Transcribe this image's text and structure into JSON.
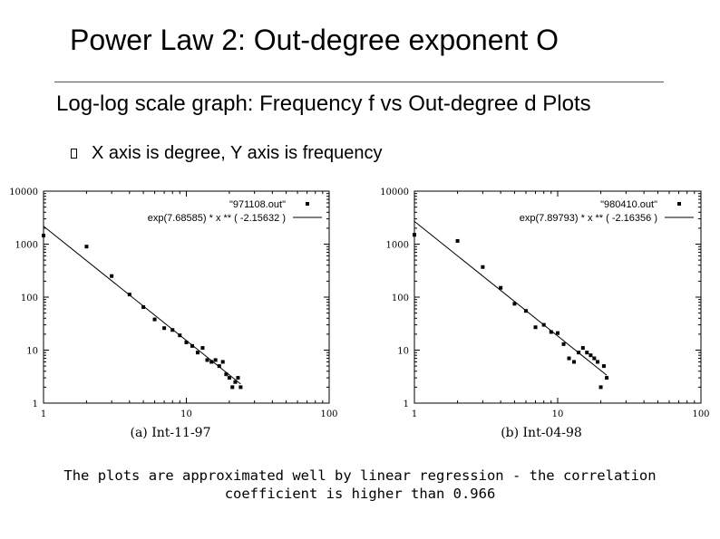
{
  "slide": {
    "title": "Power Law 2: Out-degree exponent O",
    "bullet_main": "Log-log scale graph: Frequency f vs Out-degree d Plots",
    "bullet_sub": "X axis is degree, Y axis is frequency",
    "caption": "The plots are approximated well by linear regression - the correlation coefficient is higher than 0.966"
  },
  "chart_data": [
    {
      "type": "scatter",
      "subtitle": "(a) Int-11-97",
      "x_scale": "log",
      "y_scale": "log",
      "xlim": [
        1,
        100
      ],
      "ylim": [
        1,
        10000
      ],
      "x_ticks": [
        "1",
        "10",
        "100"
      ],
      "y_ticks": [
        "10000",
        "1000",
        "100",
        "10",
        "1"
      ],
      "legend_position": "top-right",
      "series": [
        {
          "name": "\"971108.out\"",
          "points": [
            [
              1,
              1450
            ],
            [
              2,
              900
            ],
            [
              3,
              250
            ],
            [
              4,
              112
            ],
            [
              5,
              65
            ],
            [
              6,
              38
            ],
            [
              7,
              26
            ],
            [
              8,
              24
            ],
            [
              9,
              19
            ],
            [
              10,
              14
            ],
            [
              11,
              12
            ],
            [
              12,
              9
            ],
            [
              13,
              11
            ],
            [
              14,
              6.5
            ],
            [
              15,
              6
            ],
            [
              16,
              6.5
            ],
            [
              17,
              5
            ],
            [
              18,
              6
            ],
            [
              19,
              3.5
            ],
            [
              20,
              3
            ],
            [
              21,
              2
            ],
            [
              22,
              2.5
            ],
            [
              23,
              3
            ],
            [
              24,
              2
            ]
          ]
        },
        {
          "name": "exp(7.68585) * x ** ( -2.15632 )",
          "intercept_exp": 7.68585,
          "exponent": -2.15632,
          "x_range": [
            1,
            24
          ]
        }
      ]
    },
    {
      "type": "scatter",
      "subtitle": "(b) Int-04-98",
      "x_scale": "log",
      "y_scale": "log",
      "xlim": [
        1,
        100
      ],
      "ylim": [
        1,
        10000
      ],
      "x_ticks": [
        "1",
        "10",
        "100"
      ],
      "y_ticks": [
        "10000",
        "1000",
        "100",
        "10",
        "1"
      ],
      "legend_position": "top-right",
      "series": [
        {
          "name": "\"980410.out\"",
          "points": [
            [
              1,
              1500
            ],
            [
              2,
              1150
            ],
            [
              3,
              370
            ],
            [
              4,
              150
            ],
            [
              5,
              75
            ],
            [
              6,
              55
            ],
            [
              7,
              27
            ],
            [
              8,
              30
            ],
            [
              9,
              22
            ],
            [
              10,
              21
            ],
            [
              11,
              13
            ],
            [
              12,
              7
            ],
            [
              13,
              6
            ],
            [
              14,
              9
            ],
            [
              15,
              11
            ],
            [
              16,
              9
            ],
            [
              17,
              8
            ],
            [
              18,
              7
            ],
            [
              19,
              6
            ],
            [
              20,
              2
            ],
            [
              21,
              5
            ],
            [
              22,
              3
            ]
          ]
        },
        {
          "name": "exp(7.89793) * x ** ( -2.16356 )",
          "intercept_exp": 7.89793,
          "exponent": -2.16356,
          "x_range": [
            1,
            22
          ]
        }
      ]
    }
  ]
}
